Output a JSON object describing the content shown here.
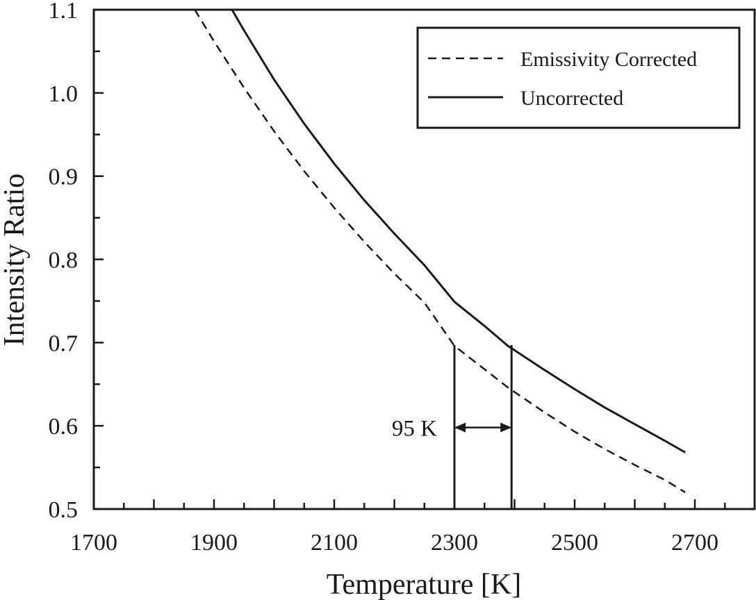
{
  "chart_data": {
    "type": "line",
    "xlabel": "Temperature [K]",
    "ylabel": "Intensity Ratio",
    "xlim": [
      1700,
      2800
    ],
    "ylim": [
      0.5,
      1.1
    ],
    "x_ticks": [
      1700,
      1900,
      2100,
      2300,
      2500,
      2700
    ],
    "y_ticks": [
      "0.5",
      "0.6",
      "0.7",
      "0.8",
      "0.9",
      "1.0",
      "1.1"
    ],
    "x_minor_step": 50,
    "y_minor_step": 0.05,
    "grid": false,
    "legend_position": "top-right",
    "series": [
      {
        "name": "Emissivity Corrected",
        "style": "dashed",
        "color": "#1a1a1a",
        "points": [
          [
            1868,
            1.1
          ],
          [
            1900,
            1.062
          ],
          [
            1950,
            1.006
          ],
          [
            2000,
            0.954
          ],
          [
            2050,
            0.906
          ],
          [
            2100,
            0.862
          ],
          [
            2150,
            0.821
          ],
          [
            2200,
            0.783
          ],
          [
            2250,
            0.748
          ],
          [
            2300,
            0.696
          ],
          [
            2350,
            0.668
          ],
          [
            2389,
            0.646
          ],
          [
            2450,
            0.616
          ],
          [
            2500,
            0.593
          ],
          [
            2550,
            0.572
          ],
          [
            2600,
            0.553
          ],
          [
            2650,
            0.535
          ],
          [
            2684,
            0.52
          ]
        ]
      },
      {
        "name": "Uncorrected",
        "style": "solid",
        "color": "#1a1a1a",
        "points": [
          [
            1930,
            1.1
          ],
          [
            1950,
            1.075
          ],
          [
            2000,
            1.016
          ],
          [
            2050,
            0.963
          ],
          [
            2100,
            0.915
          ],
          [
            2150,
            0.871
          ],
          [
            2200,
            0.831
          ],
          [
            2250,
            0.793
          ],
          [
            2300,
            0.749
          ],
          [
            2350,
            0.72
          ],
          [
            2389,
            0.696
          ],
          [
            2450,
            0.667
          ],
          [
            2500,
            0.644
          ],
          [
            2550,
            0.622
          ],
          [
            2600,
            0.602
          ],
          [
            2650,
            0.582
          ],
          [
            2684,
            0.568
          ]
        ]
      }
    ],
    "annotations": [
      {
        "text": "95 K",
        "x1": 2300,
        "x2": 2395,
        "arrow_y": 0.598,
        "vline_top_1": 0.697,
        "vline_top_2": 0.697
      }
    ]
  }
}
